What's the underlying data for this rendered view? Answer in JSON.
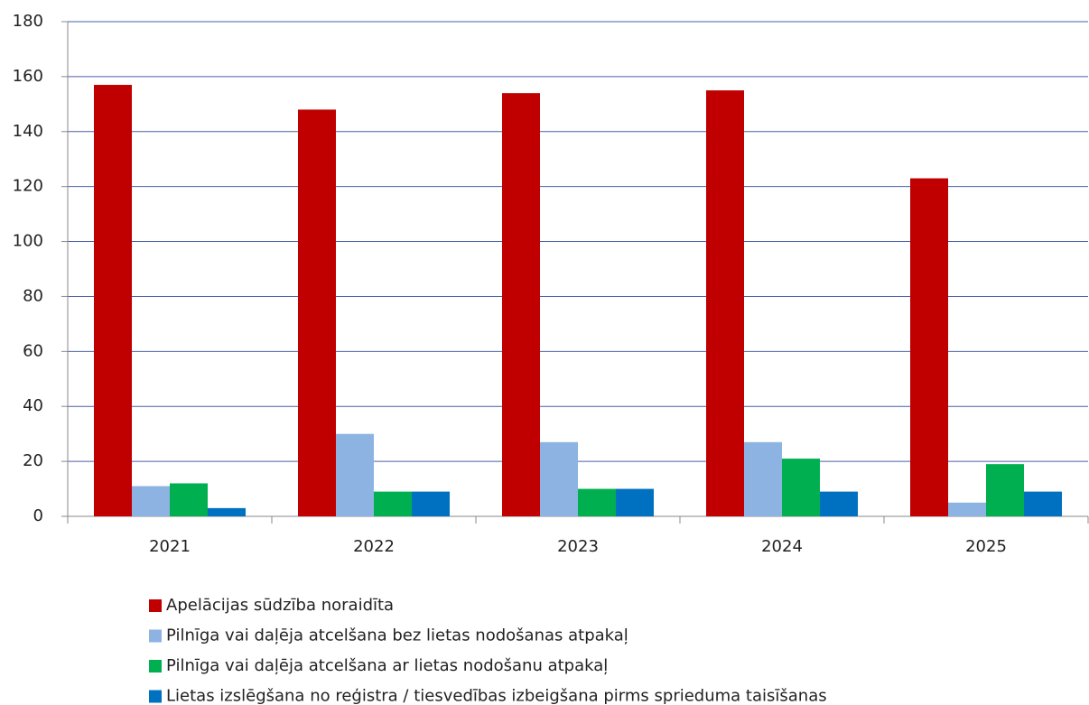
{
  "chart_data": {
    "type": "bar",
    "categories": [
      "2021",
      "2022",
      "2023",
      "2024",
      "2025"
    ],
    "series": [
      {
        "name": "Apelācijas sūdzība noraidīta",
        "color": "#c00000",
        "values": [
          157,
          148,
          154,
          155,
          123
        ]
      },
      {
        "name": "Pilnīga vai daļēja atcelšana bez lietas nodošanas atpakaļ",
        "color": "#8db3e2",
        "values": [
          11,
          30,
          27,
          27,
          5
        ]
      },
      {
        "name": "Pilnīga vai daļēja atcelšana ar lietas nodošanu atpakaļ",
        "color": "#00b050",
        "values": [
          12,
          9,
          10,
          21,
          19
        ]
      },
      {
        "name": "Lietas izslēgšana no reģistra / tiesvedības izbeigšana pirms sprieduma taisīšanas",
        "color": "#0070c0",
        "values": [
          3,
          9,
          10,
          9,
          9
        ]
      }
    ],
    "ylim": [
      0,
      180
    ],
    "yticks": [
      0,
      20,
      40,
      60,
      80,
      100,
      120,
      140,
      160,
      180
    ],
    "grid": true,
    "legend": "bottom"
  }
}
